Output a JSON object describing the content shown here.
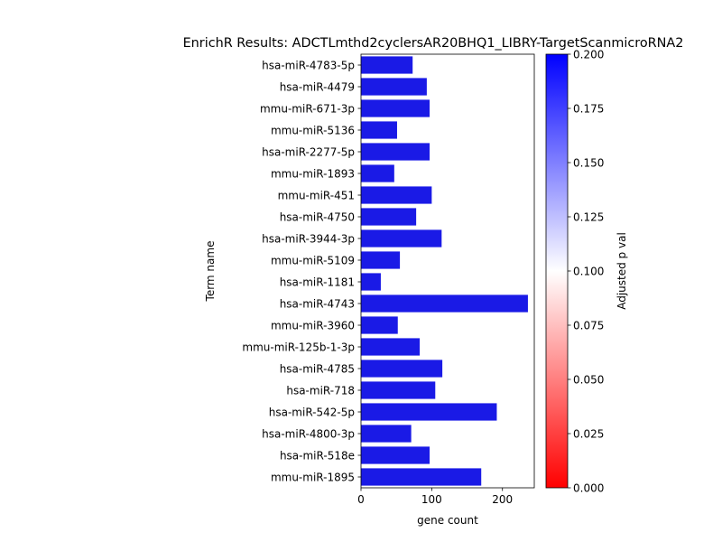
{
  "chart_data": {
    "type": "bar",
    "orientation": "horizontal",
    "title": "EnrichR Results: ADCTLmthd2cyclersAR20BHQ1_LIBRY-TargetScanmicroRNA2",
    "xlabel": "gene count",
    "ylabel": "Term name",
    "xlim": [
      0,
      245
    ],
    "xticks": [
      0,
      100,
      200
    ],
    "grid": false,
    "categories": [
      "hsa-miR-4783-5p",
      "hsa-miR-4479",
      "mmu-miR-671-3p",
      "mmu-miR-5136",
      "hsa-miR-2277-5p",
      "mmu-miR-1893",
      "mmu-miR-451",
      "hsa-miR-4750",
      "hsa-miR-3944-3p",
      "mmu-miR-5109",
      "hsa-miR-1181",
      "hsa-miR-4743",
      "mmu-miR-3960",
      "mmu-miR-125b-1-3p",
      "hsa-miR-4785",
      "hsa-miR-718",
      "hsa-miR-542-5p",
      "hsa-miR-4800-3p",
      "hsa-miR-518e",
      "mmu-miR-1895"
    ],
    "values": [
      73,
      93,
      97,
      51,
      97,
      47,
      100,
      78,
      114,
      55,
      28,
      236,
      52,
      83,
      115,
      105,
      192,
      71,
      97,
      170
    ],
    "bar_color": "#1a1ae6",
    "colorbar": {
      "label": "Adjusted p val",
      "range": [
        0.0,
        0.2
      ],
      "ticks": [
        "0.000",
        "0.025",
        "0.050",
        "0.075",
        "0.100",
        "0.125",
        "0.150",
        "0.175",
        "0.200"
      ],
      "colors": [
        "#ff0000",
        "#ffffff",
        "#0000ff"
      ]
    }
  }
}
